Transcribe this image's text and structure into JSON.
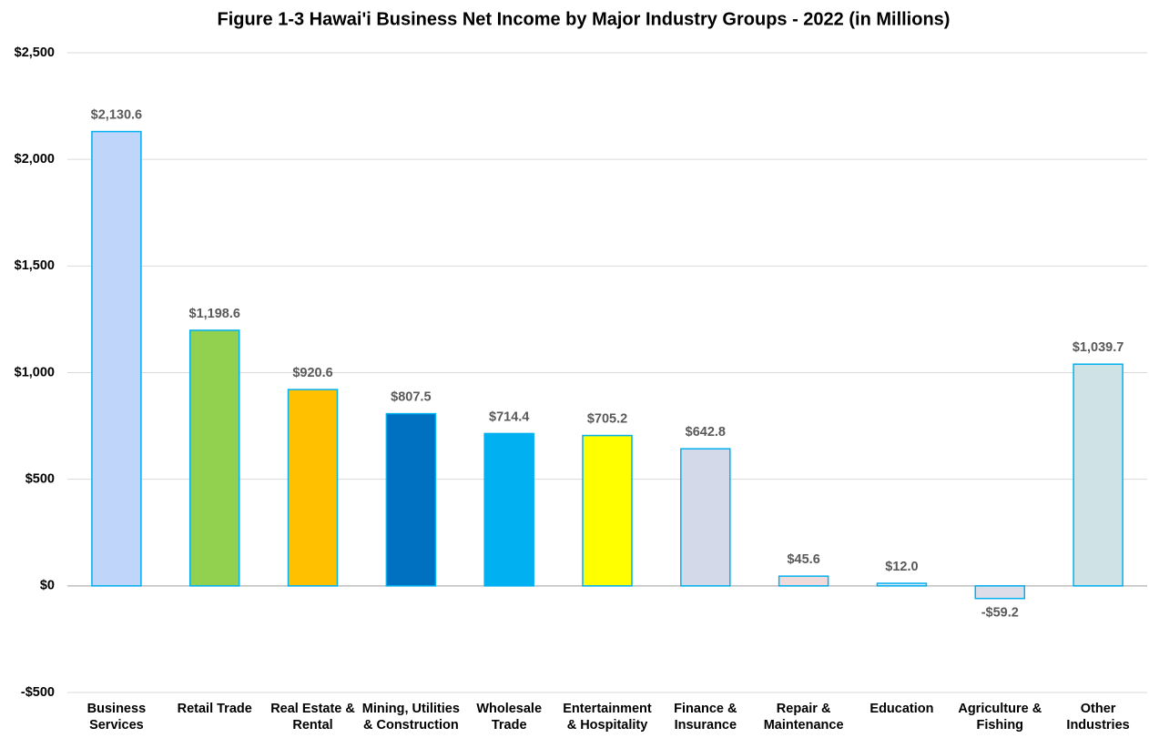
{
  "chart_data": {
    "type": "bar",
    "title": "Figure 1-3 Hawai'i Business Net Income by Major Industry Groups - 2022 (in Millions)",
    "categories": [
      "Business Services",
      "Retail Trade",
      "Real Estate & Rental",
      "Mining, Utilities & Construction",
      "Wholesale Trade",
      "Entertainment & Hospitality",
      "Finance & Insurance",
      "Repair & Maintenance",
      "Education",
      "Agriculture & Fishing",
      "Other Industries"
    ],
    "values": [
      2130.6,
      1198.6,
      920.6,
      807.5,
      714.4,
      705.2,
      642.8,
      45.6,
      12.0,
      -59.2,
      1039.7
    ],
    "value_labels": [
      "$2,130.6",
      "$1,198.6",
      "$920.6",
      "$807.5",
      "$714.4",
      "$705.2",
      "$642.8",
      "$45.6",
      "$12.0",
      "-$59.2",
      "$1,039.7"
    ],
    "colors": [
      "#c0d5fa",
      "#92d050",
      "#ffc000",
      "#0070c0",
      "#00b0f0",
      "#ffff00",
      "#d3d9e8",
      "#f0dada",
      "#e3e9f2",
      "#dcdde8",
      "#cfe3e7"
    ],
    "ylim": [
      -500,
      2500
    ],
    "yticks": [
      {
        "value": -500,
        "label": "-$500"
      },
      {
        "value": 0,
        "label": "$0"
      },
      {
        "value": 500,
        "label": "$500"
      },
      {
        "value": 1000,
        "label": "$1,000"
      },
      {
        "value": 1500,
        "label": "$1,500"
      },
      {
        "value": 2000,
        "label": "$2,000"
      },
      {
        "value": 2500,
        "label": "$2,500"
      }
    ],
    "grid": true
  }
}
